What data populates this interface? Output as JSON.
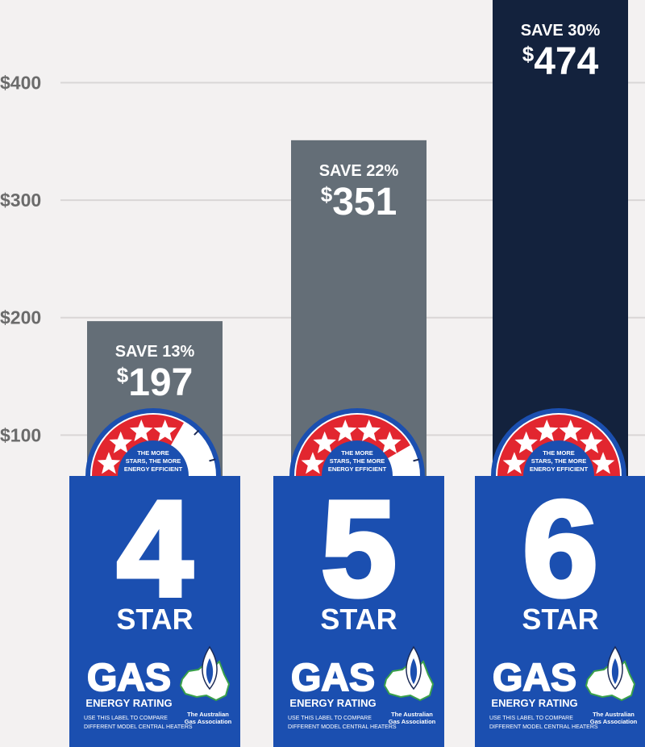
{
  "chart_data": {
    "type": "bar",
    "categories": [
      "4 STAR",
      "5 STAR",
      "6 STAR"
    ],
    "values": [
      197,
      351,
      474
    ],
    "value_labels": [
      "197",
      "351",
      "474"
    ],
    "currency_symbol": "$",
    "savings_labels": [
      "SAVE 13%",
      "SAVE 22%",
      "SAVE 30%"
    ],
    "yticks": [
      100,
      200,
      300,
      400
    ],
    "ytick_labels": [
      "$100",
      "$200",
      "$300",
      "$400"
    ],
    "ylim": [
      0,
      500
    ],
    "grid": true,
    "bar_colors": [
      "#646e77",
      "#646e77",
      "#13223d"
    ]
  },
  "badges": [
    {
      "star_number": "4",
      "star_word": "STAR",
      "stars": 4,
      "gauge_text": [
        "THE MORE",
        "STARS, THE MORE",
        "ENERGY EFFICIENT"
      ],
      "gas_word": "GAS",
      "rating_word": "ENERGY RATING",
      "compare_text": [
        "USE THIS LABEL TO COMPARE",
        "DIFFERENT MODEL CENTRAL HEATERS"
      ],
      "association_text": [
        "The Australian",
        "Gas Association"
      ]
    },
    {
      "star_number": "5",
      "star_word": "STAR",
      "stars": 5,
      "gauge_text": [
        "THE MORE",
        "STARS, THE MORE",
        "ENERGY EFFICIENT"
      ],
      "gas_word": "GAS",
      "rating_word": "ENERGY RATING",
      "compare_text": [
        "USE THIS LABEL TO COMPARE",
        "DIFFERENT MODEL CENTRAL HEATERS"
      ],
      "association_text": [
        "The Australian",
        "Gas Association"
      ]
    },
    {
      "star_number": "6",
      "star_word": "STAR",
      "stars": 6,
      "gauge_text": [
        "THE MORE",
        "STARS, THE MORE",
        "ENERGY EFFICIENT"
      ],
      "gas_word": "GAS",
      "rating_word": "ENERGY RATING",
      "compare_text": [
        "USE THIS LABEL TO COMPARE",
        "DIFFERENT MODEL CENTRAL HEATERS"
      ],
      "association_text": [
        "The Australian",
        "Gas Association"
      ]
    }
  ],
  "colors": {
    "label_blue": "#1b4fb0",
    "gauge_red": "#e2262f",
    "grid": "#d9d6d6",
    "tick_text": "#6b6b6b"
  }
}
